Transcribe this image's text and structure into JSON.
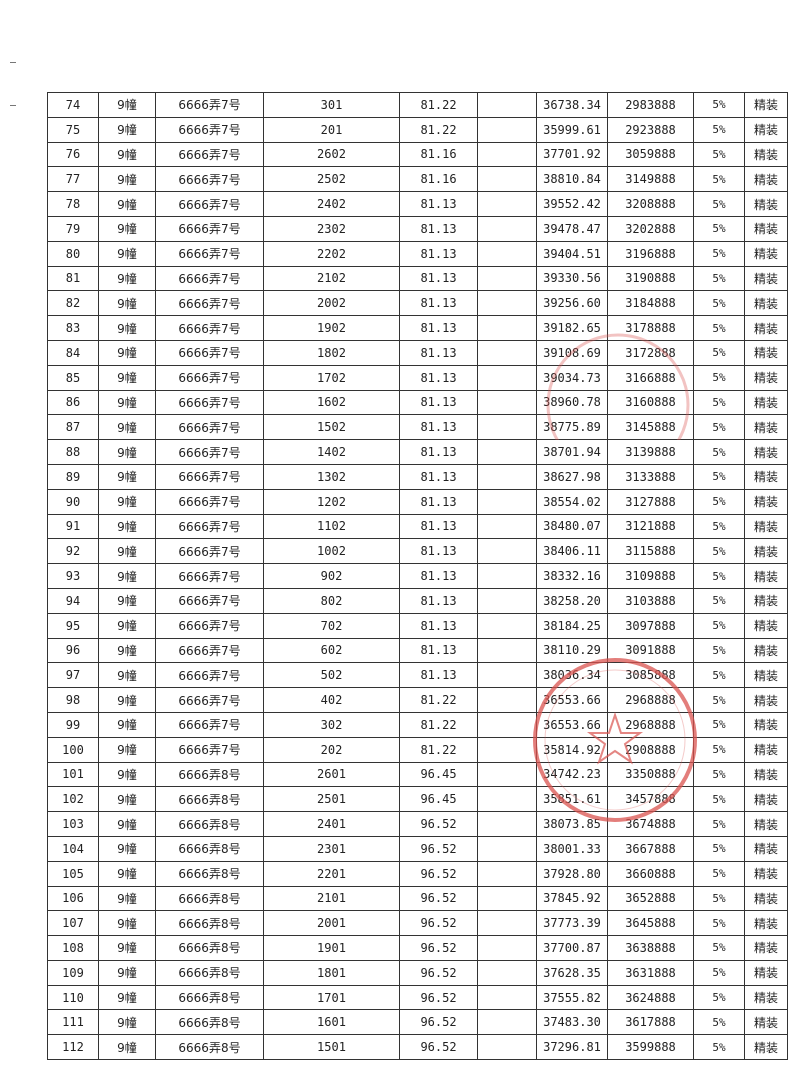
{
  "table": {
    "rows": [
      [
        "74",
        "9幢",
        "6666弄7号",
        "301",
        "81.22",
        "",
        "36738.34",
        "2983888",
        "5%",
        "精装"
      ],
      [
        "75",
        "9幢",
        "6666弄7号",
        "201",
        "81.22",
        "",
        "35999.61",
        "2923888",
        "5%",
        "精装"
      ],
      [
        "76",
        "9幢",
        "6666弄7号",
        "2602",
        "81.16",
        "",
        "37701.92",
        "3059888",
        "5%",
        "精装"
      ],
      [
        "77",
        "9幢",
        "6666弄7号",
        "2502",
        "81.16",
        "",
        "38810.84",
        "3149888",
        "5%",
        "精装"
      ],
      [
        "78",
        "9幢",
        "6666弄7号",
        "2402",
        "81.13",
        "",
        "39552.42",
        "3208888",
        "5%",
        "精装"
      ],
      [
        "79",
        "9幢",
        "6666弄7号",
        "2302",
        "81.13",
        "",
        "39478.47",
        "3202888",
        "5%",
        "精装"
      ],
      [
        "80",
        "9幢",
        "6666弄7号",
        "2202",
        "81.13",
        "",
        "39404.51",
        "3196888",
        "5%",
        "精装"
      ],
      [
        "81",
        "9幢",
        "6666弄7号",
        "2102",
        "81.13",
        "",
        "39330.56",
        "3190888",
        "5%",
        "精装"
      ],
      [
        "82",
        "9幢",
        "6666弄7号",
        "2002",
        "81.13",
        "",
        "39256.60",
        "3184888",
        "5%",
        "精装"
      ],
      [
        "83",
        "9幢",
        "6666弄7号",
        "1902",
        "81.13",
        "",
        "39182.65",
        "3178888",
        "5%",
        "精装"
      ],
      [
        "84",
        "9幢",
        "6666弄7号",
        "1802",
        "81.13",
        "",
        "39108.69",
        "3172888",
        "5%",
        "精装"
      ],
      [
        "85",
        "9幢",
        "6666弄7号",
        "1702",
        "81.13",
        "",
        "39034.73",
        "3166888",
        "5%",
        "精装"
      ],
      [
        "86",
        "9幢",
        "6666弄7号",
        "1602",
        "81.13",
        "",
        "38960.78",
        "3160888",
        "5%",
        "精装"
      ],
      [
        "87",
        "9幢",
        "6666弄7号",
        "1502",
        "81.13",
        "",
        "38775.89",
        "3145888",
        "5%",
        "精装"
      ],
      [
        "88",
        "9幢",
        "6666弄7号",
        "1402",
        "81.13",
        "",
        "38701.94",
        "3139888",
        "5%",
        "精装"
      ],
      [
        "89",
        "9幢",
        "6666弄7号",
        "1302",
        "81.13",
        "",
        "38627.98",
        "3133888",
        "5%",
        "精装"
      ],
      [
        "90",
        "9幢",
        "6666弄7号",
        "1202",
        "81.13",
        "",
        "38554.02",
        "3127888",
        "5%",
        "精装"
      ],
      [
        "91",
        "9幢",
        "6666弄7号",
        "1102",
        "81.13",
        "",
        "38480.07",
        "3121888",
        "5%",
        "精装"
      ],
      [
        "92",
        "9幢",
        "6666弄7号",
        "1002",
        "81.13",
        "",
        "38406.11",
        "3115888",
        "5%",
        "精装"
      ],
      [
        "93",
        "9幢",
        "6666弄7号",
        "902",
        "81.13",
        "",
        "38332.16",
        "3109888",
        "5%",
        "精装"
      ],
      [
        "94",
        "9幢",
        "6666弄7号",
        "802",
        "81.13",
        "",
        "38258.20",
        "3103888",
        "5%",
        "精装"
      ],
      [
        "95",
        "9幢",
        "6666弄7号",
        "702",
        "81.13",
        "",
        "38184.25",
        "3097888",
        "5%",
        "精装"
      ],
      [
        "96",
        "9幢",
        "6666弄7号",
        "602",
        "81.13",
        "",
        "38110.29",
        "3091888",
        "5%",
        "精装"
      ],
      [
        "97",
        "9幢",
        "6666弄7号",
        "502",
        "81.13",
        "",
        "38036.34",
        "3085888",
        "5%",
        "精装"
      ],
      [
        "98",
        "9幢",
        "6666弄7号",
        "402",
        "81.22",
        "",
        "36553.66",
        "2968888",
        "5%",
        "精装"
      ],
      [
        "99",
        "9幢",
        "6666弄7号",
        "302",
        "81.22",
        "",
        "36553.66",
        "2968888",
        "5%",
        "精装"
      ],
      [
        "100",
        "9幢",
        "6666弄7号",
        "202",
        "81.22",
        "",
        "35814.92",
        "2908888",
        "5%",
        "精装"
      ],
      [
        "101",
        "9幢",
        "6666弄8号",
        "2601",
        "96.45",
        "",
        "34742.23",
        "3350888",
        "5%",
        "精装"
      ],
      [
        "102",
        "9幢",
        "6666弄8号",
        "2501",
        "96.45",
        "",
        "35851.61",
        "3457888",
        "5%",
        "精装"
      ],
      [
        "103",
        "9幢",
        "6666弄8号",
        "2401",
        "96.52",
        "",
        "38073.85",
        "3674888",
        "5%",
        "精装"
      ],
      [
        "104",
        "9幢",
        "6666弄8号",
        "2301",
        "96.52",
        "",
        "38001.33",
        "3667888",
        "5%",
        "精装"
      ],
      [
        "105",
        "9幢",
        "6666弄8号",
        "2201",
        "96.52",
        "",
        "37928.80",
        "3660888",
        "5%",
        "精装"
      ],
      [
        "106",
        "9幢",
        "6666弄8号",
        "2101",
        "96.52",
        "",
        "37845.92",
        "3652888",
        "5%",
        "精装"
      ],
      [
        "107",
        "9幢",
        "6666弄8号",
        "2001",
        "96.52",
        "",
        "37773.39",
        "3645888",
        "5%",
        "精装"
      ],
      [
        "108",
        "9幢",
        "6666弄8号",
        "1901",
        "96.52",
        "",
        "37700.87",
        "3638888",
        "5%",
        "精装"
      ],
      [
        "109",
        "9幢",
        "6666弄8号",
        "1801",
        "96.52",
        "",
        "37628.35",
        "3631888",
        "5%",
        "精装"
      ],
      [
        "110",
        "9幢",
        "6666弄8号",
        "1701",
        "96.52",
        "",
        "37555.82",
        "3624888",
        "5%",
        "精装"
      ],
      [
        "111",
        "9幢",
        "6666弄8号",
        "1601",
        "96.52",
        "",
        "37483.30",
        "3617888",
        "5%",
        "精装"
      ],
      [
        "112",
        "9幢",
        "6666弄8号",
        "1501",
        "96.52",
        "",
        "37296.81",
        "3599888",
        "5%",
        "精装"
      ]
    ]
  },
  "colors": {
    "stamp": "#d9534f",
    "ink": "#222222"
  }
}
